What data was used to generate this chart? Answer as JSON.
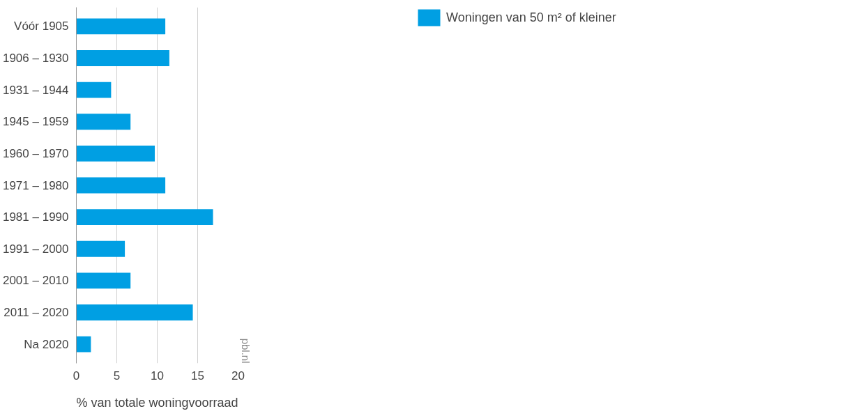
{
  "chart_data": {
    "type": "bar",
    "orientation": "horizontal",
    "xlabel": "% van totale woningvoorraad",
    "categories": [
      "Vóór 1905",
      "1906 – 1930",
      "1931 – 1944",
      "1945 – 1959",
      "1960 – 1970",
      "1971 – 1980",
      "1981 – 1990",
      "1991 – 2000",
      "2001 – 2010",
      "2011 – 2020",
      "Na 2020"
    ],
    "series": [
      {
        "name": "Woningen van 50 m² of kleiner",
        "color": "#009fe3",
        "values": [
          11.0,
          11.5,
          4.3,
          6.7,
          9.7,
          11.0,
          16.9,
          6.0,
          6.7,
          14.4,
          1.8
        ]
      }
    ],
    "xlim": [
      0,
      20
    ],
    "xticks": [
      0,
      5,
      10,
      15,
      20
    ],
    "grid": "x",
    "legend": "top right",
    "annotations": [
      "pbl.nl"
    ]
  }
}
